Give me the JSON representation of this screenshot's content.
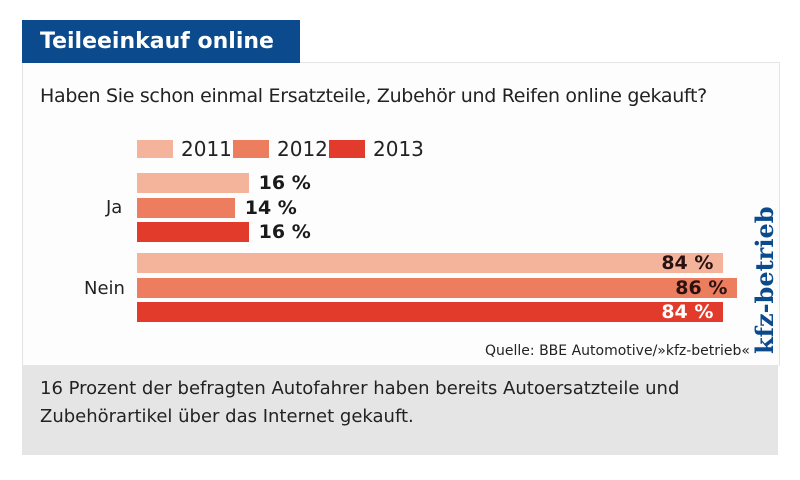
{
  "header": {
    "title": "Teileeinkauf online",
    "question": "Haben Sie schon einmal Ersatzteile, Zubehör und Reifen online gekauft?"
  },
  "chart_data": {
    "type": "bar",
    "orientation": "horizontal",
    "categories": [
      "Ja",
      "Nein"
    ],
    "series": [
      {
        "name": "2011",
        "color": "#f4b49c",
        "values": [
          16,
          84
        ],
        "labels": [
          "16 %",
          "84 %"
        ]
      },
      {
        "name": "2012",
        "color": "#ec7d5f",
        "values": [
          14,
          86
        ],
        "labels": [
          "14 %",
          "86 %"
        ]
      },
      {
        "name": "2013",
        "color": "#e23a2b",
        "values": [
          16,
          84
        ],
        "labels": [
          "16 %",
          "84 %"
        ]
      }
    ],
    "unit": "%",
    "legend": "top",
    "grid": false
  },
  "source": "Quelle: BBE Automotive/»kfz-betrieb«",
  "logo": "kfz-betrieb",
  "caption": "16 Prozent der befragten Autofahrer haben bereits Autoersatzteile und Zubehörartikel über das Internet gekauft.",
  "colors": {
    "title_bg": "#0b4a8c",
    "caption_bg": "#e5e5e5"
  }
}
